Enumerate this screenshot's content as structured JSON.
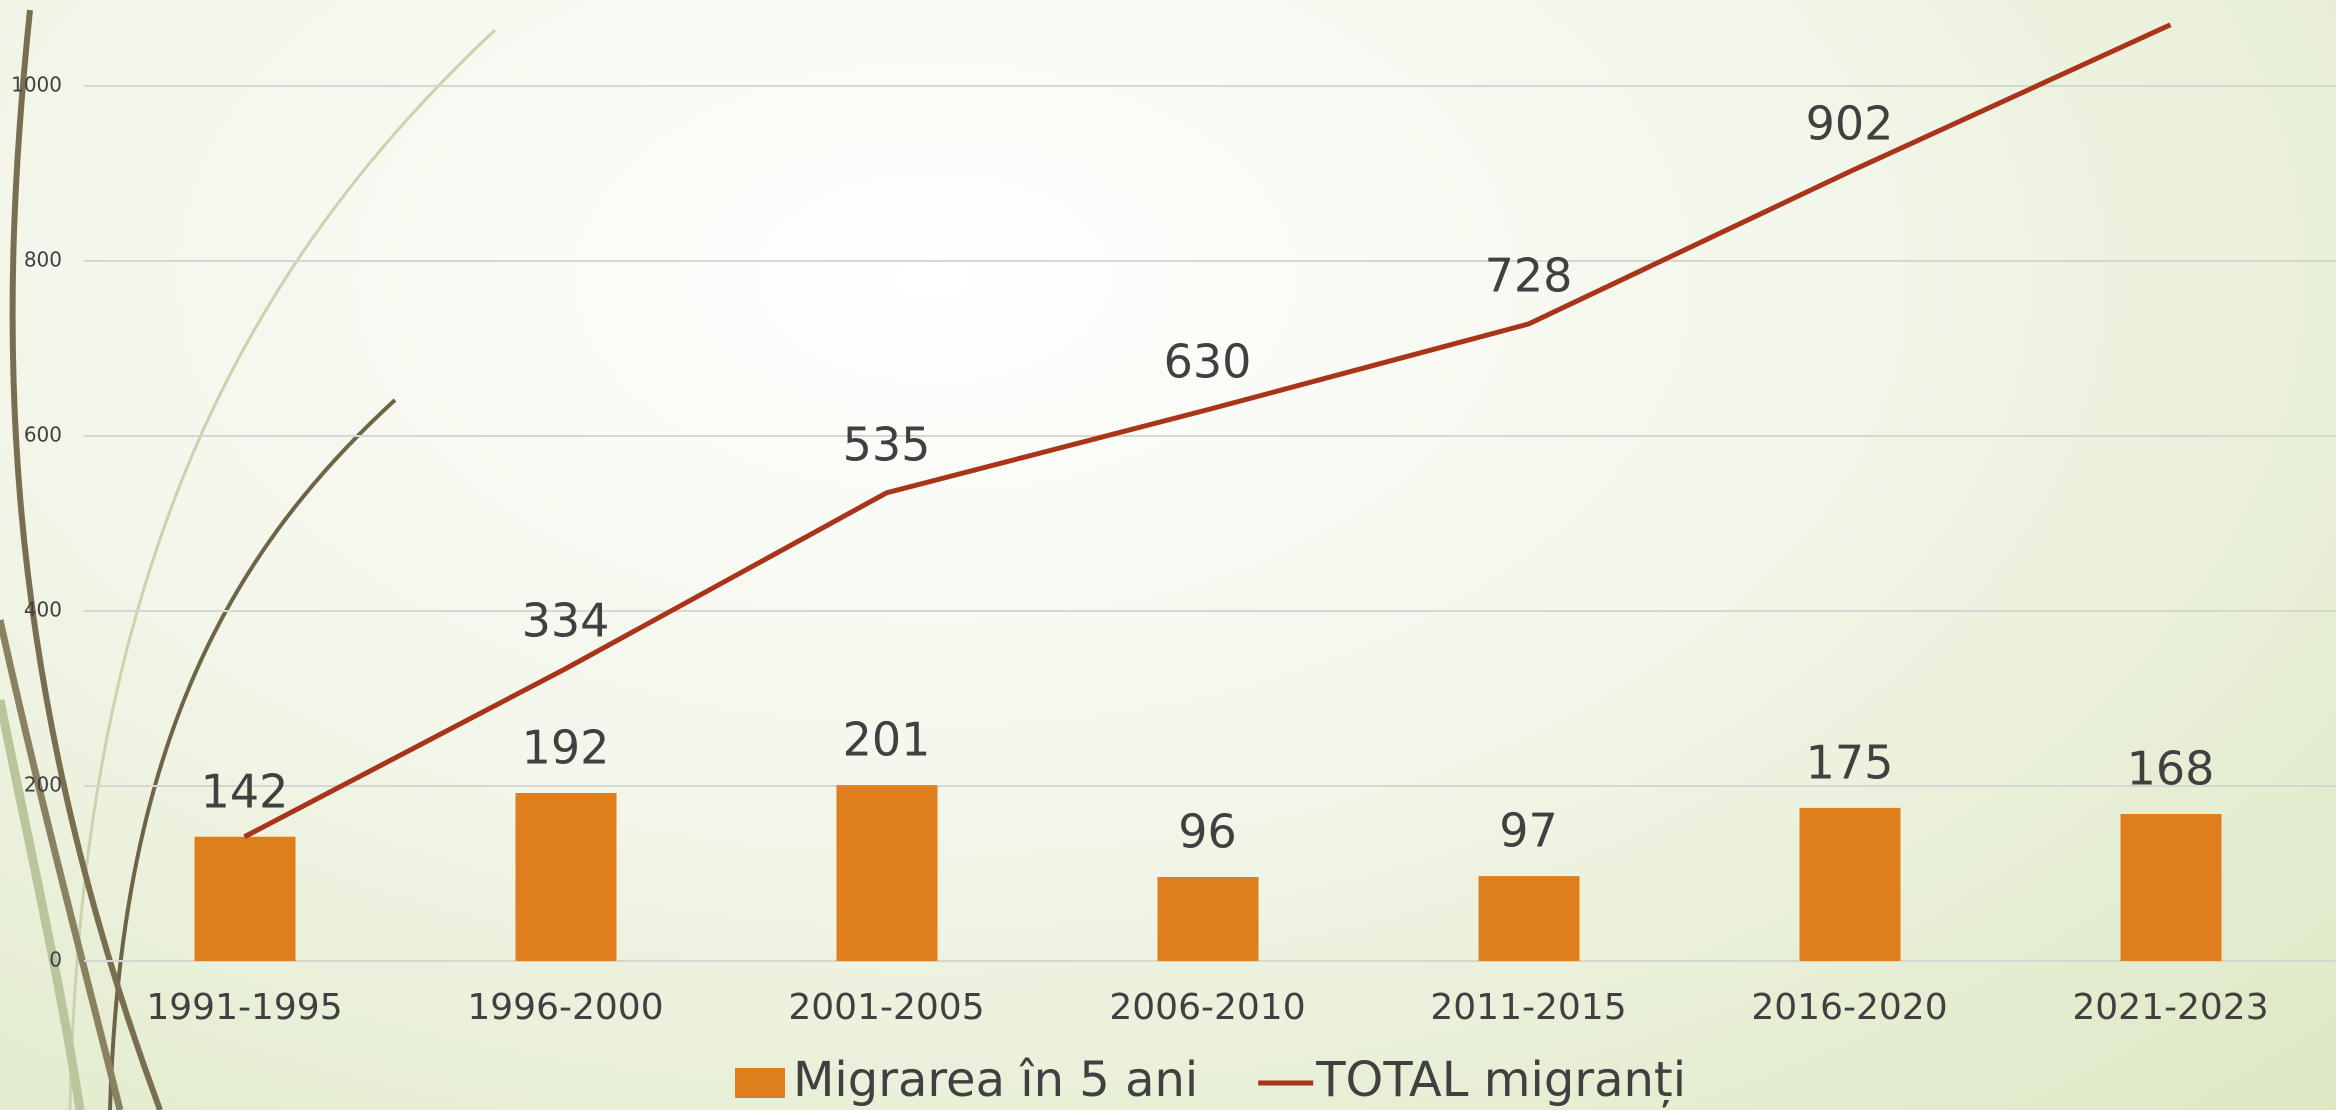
{
  "chart_data": {
    "type": "bar",
    "categories": [
      "1991-1995",
      "1996-2000",
      "2001-2005",
      "2006-2010",
      "2011-2015",
      "2016-2020",
      "2021-2023"
    ],
    "series": [
      {
        "name": "Migrarea în 5 ani",
        "type": "bar",
        "color": "#de7e1c",
        "values": [
          142,
          192,
          201,
          96,
          97,
          175,
          168
        ]
      },
      {
        "name": "TOTAL migranți",
        "type": "line",
        "color": "#a8341a",
        "values": [
          142,
          334,
          535,
          630,
          728,
          902,
          1070
        ]
      }
    ],
    "ylim": [
      0,
      1000
    ],
    "yticks": [
      0,
      200,
      400,
      600,
      800,
      1000
    ],
    "grid": true,
    "legend": "bottom"
  }
}
